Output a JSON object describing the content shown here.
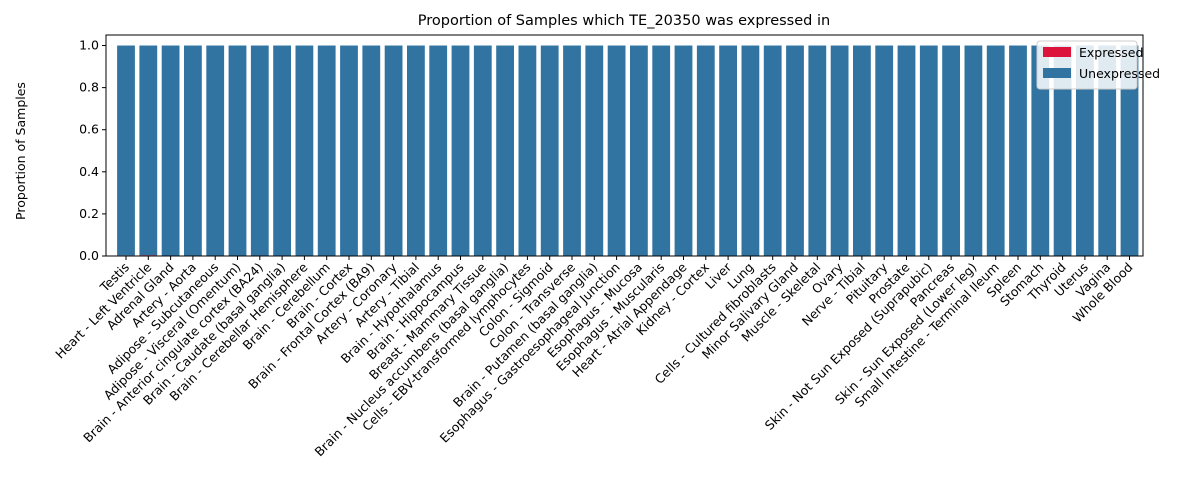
{
  "chart_data": {
    "type": "bar",
    "stacked": true,
    "title": "Proportion of Samples which TE_20350 was expressed in",
    "xlabel": "",
    "ylabel": "Proportion of Samples",
    "ylim": [
      0,
      1.05
    ],
    "yticks": [
      0.0,
      0.2,
      0.4,
      0.6,
      0.8,
      1.0
    ],
    "ytick_labels": [
      "0.0",
      "0.2",
      "0.4",
      "0.6",
      "0.8",
      "1.0"
    ],
    "grid": false,
    "legend_position": "top-right",
    "categories": [
      "Testis",
      "Heart - Left Ventricle",
      "Adrenal Gland",
      "Artery - Aorta",
      "Adipose - Subcutaneous",
      "Adipose - Visceral (Omentum)",
      "Brain - Anterior cingulate cortex (BA24)",
      "Brain - Caudate (basal ganglia)",
      "Brain - Cerebellar Hemisphere",
      "Brain - Cerebellum",
      "Brain - Cortex",
      "Brain - Frontal Cortex (BA9)",
      "Artery - Coronary",
      "Artery - Tibial",
      "Brain - Hypothalamus",
      "Brain - Hippocampus",
      "Breast - Mammary Tissue",
      "Brain - Nucleus accumbens (basal ganglia)",
      "Cells - EBV-transformed lymphocytes",
      "Colon - Sigmoid",
      "Colon - Transverse",
      "Brain - Putamen (basal ganglia)",
      "Esophagus - Gastroesophageal Junction",
      "Esophagus - Mucosa",
      "Esophagus - Muscularis",
      "Heart - Atrial Appendage",
      "Kidney - Cortex",
      "Liver",
      "Lung",
      "Cells - Cultured fibroblasts",
      "Minor Salivary Gland",
      "Muscle - Skeletal",
      "Ovary",
      "Nerve - Tibial",
      "Pituitary",
      "Prostate",
      "Skin - Not Sun Exposed (Suprapubic)",
      "Pancreas",
      "Skin - Sun Exposed (Lower leg)",
      "Small Intestine - Terminal Ileum",
      "Spleen",
      "Stomach",
      "Thyroid",
      "Uterus",
      "Vagina",
      "Whole Blood"
    ],
    "series": [
      {
        "name": "Expressed",
        "color": "#dc143c",
        "values": [
          0.003,
          0.004,
          0,
          0,
          0,
          0,
          0,
          0,
          0,
          0,
          0,
          0,
          0,
          0,
          0,
          0,
          0,
          0,
          0,
          0,
          0,
          0,
          0,
          0,
          0,
          0,
          0,
          0,
          0,
          0,
          0,
          0,
          0,
          0,
          0,
          0,
          0,
          0,
          0,
          0,
          0,
          0,
          0,
          0,
          0,
          0
        ]
      },
      {
        "name": "Unexpressed",
        "color": "#3274a1",
        "values": [
          0.997,
          0.996,
          1,
          1,
          1,
          1,
          1,
          1,
          1,
          1,
          1,
          1,
          1,
          1,
          1,
          1,
          1,
          1,
          1,
          1,
          1,
          1,
          1,
          1,
          1,
          1,
          1,
          1,
          1,
          1,
          1,
          1,
          1,
          1,
          1,
          1,
          1,
          1,
          1,
          1,
          1,
          1,
          1,
          1,
          1,
          1
        ]
      }
    ]
  }
}
